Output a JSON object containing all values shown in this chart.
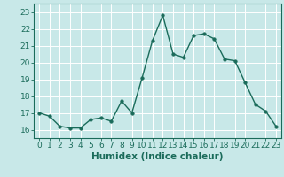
{
  "x": [
    0,
    1,
    2,
    3,
    4,
    5,
    6,
    7,
    8,
    9,
    10,
    11,
    12,
    13,
    14,
    15,
    16,
    17,
    18,
    19,
    20,
    21,
    22,
    23
  ],
  "y": [
    17.0,
    16.8,
    16.2,
    16.1,
    16.1,
    16.6,
    16.7,
    16.5,
    17.7,
    17.0,
    19.1,
    21.3,
    22.8,
    20.5,
    20.3,
    21.6,
    21.7,
    21.4,
    20.2,
    20.1,
    18.8,
    17.5,
    17.1,
    16.2
  ],
  "line_color": "#1a6b5a",
  "bg_color": "#c8e8e8",
  "grid_color": "#b0d8d8",
  "xlabel": "Humidex (Indice chaleur)",
  "ylim": [
    15.5,
    23.5
  ],
  "yticks": [
    16,
    17,
    18,
    19,
    20,
    21,
    22,
    23
  ],
  "xticks": [
    0,
    1,
    2,
    3,
    4,
    5,
    6,
    7,
    8,
    9,
    10,
    11,
    12,
    13,
    14,
    15,
    16,
    17,
    18,
    19,
    20,
    21,
    22,
    23
  ],
  "marker": "o",
  "markersize": 2.5,
  "linewidth": 1.0,
  "xlabel_fontsize": 7.5,
  "tick_fontsize": 6.5
}
